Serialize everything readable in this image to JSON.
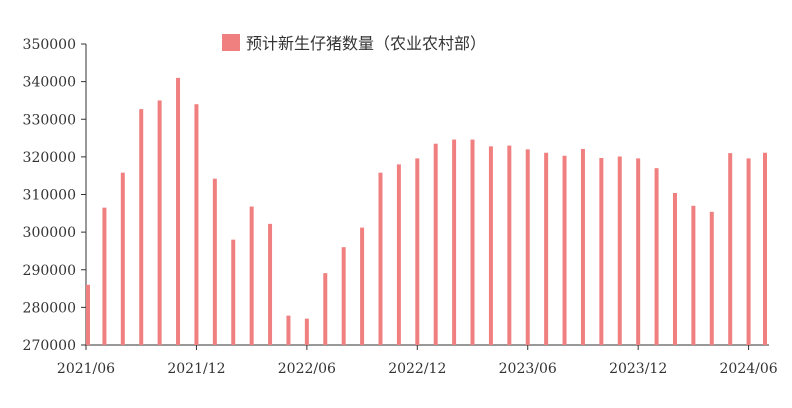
{
  "chart_data": {
    "type": "bar",
    "legend": {
      "label": "预计新生仔猪数量（农业农村部）",
      "position": "top-center"
    },
    "series": [
      {
        "name": "预计新生仔猪数量（农业农村部）",
        "color": "#f08080",
        "values": [
          286000,
          306500,
          315800,
          332700,
          335000,
          341000,
          334000,
          314200,
          298000,
          306800,
          302200,
          277800,
          277000,
          289100,
          296000,
          301200,
          315800,
          318000,
          319600,
          323500,
          324600,
          324600,
          322800,
          323000,
          322000,
          321100,
          320300,
          322100,
          319700,
          320100,
          319600,
          317000,
          310400,
          307000,
          305400,
          321000,
          319600,
          321100
        ]
      }
    ],
    "x": [
      "2021/06",
      "2021/07",
      "2021/08",
      "2021/09",
      "2021/10",
      "2021/11",
      "2021/12",
      "2022/01",
      "2022/02",
      "2022/03",
      "2022/04",
      "2022/05",
      "2022/06",
      "2022/07",
      "2022/08",
      "2022/09",
      "2022/10",
      "2022/11",
      "2022/12",
      "2023/01",
      "2023/02",
      "2023/03",
      "2023/04",
      "2023/05",
      "2023/06",
      "2023/07",
      "2023/08",
      "2023/09",
      "2023/10",
      "2023/11",
      "2023/12",
      "2024/01",
      "2024/02",
      "2024/03",
      "2024/04",
      "2024/05",
      "2024/06",
      "2024/07"
    ],
    "x_tick_labels": [
      "2021/06",
      "2021/12",
      "2022/06",
      "2022/12",
      "2023/06",
      "2023/12",
      "2024/06"
    ],
    "y_tick_labels": [
      "270000",
      "280000",
      "290000",
      "300000",
      "310000",
      "320000",
      "330000",
      "340000",
      "350000"
    ],
    "ylim": [
      270000,
      350000
    ],
    "grid": false
  }
}
